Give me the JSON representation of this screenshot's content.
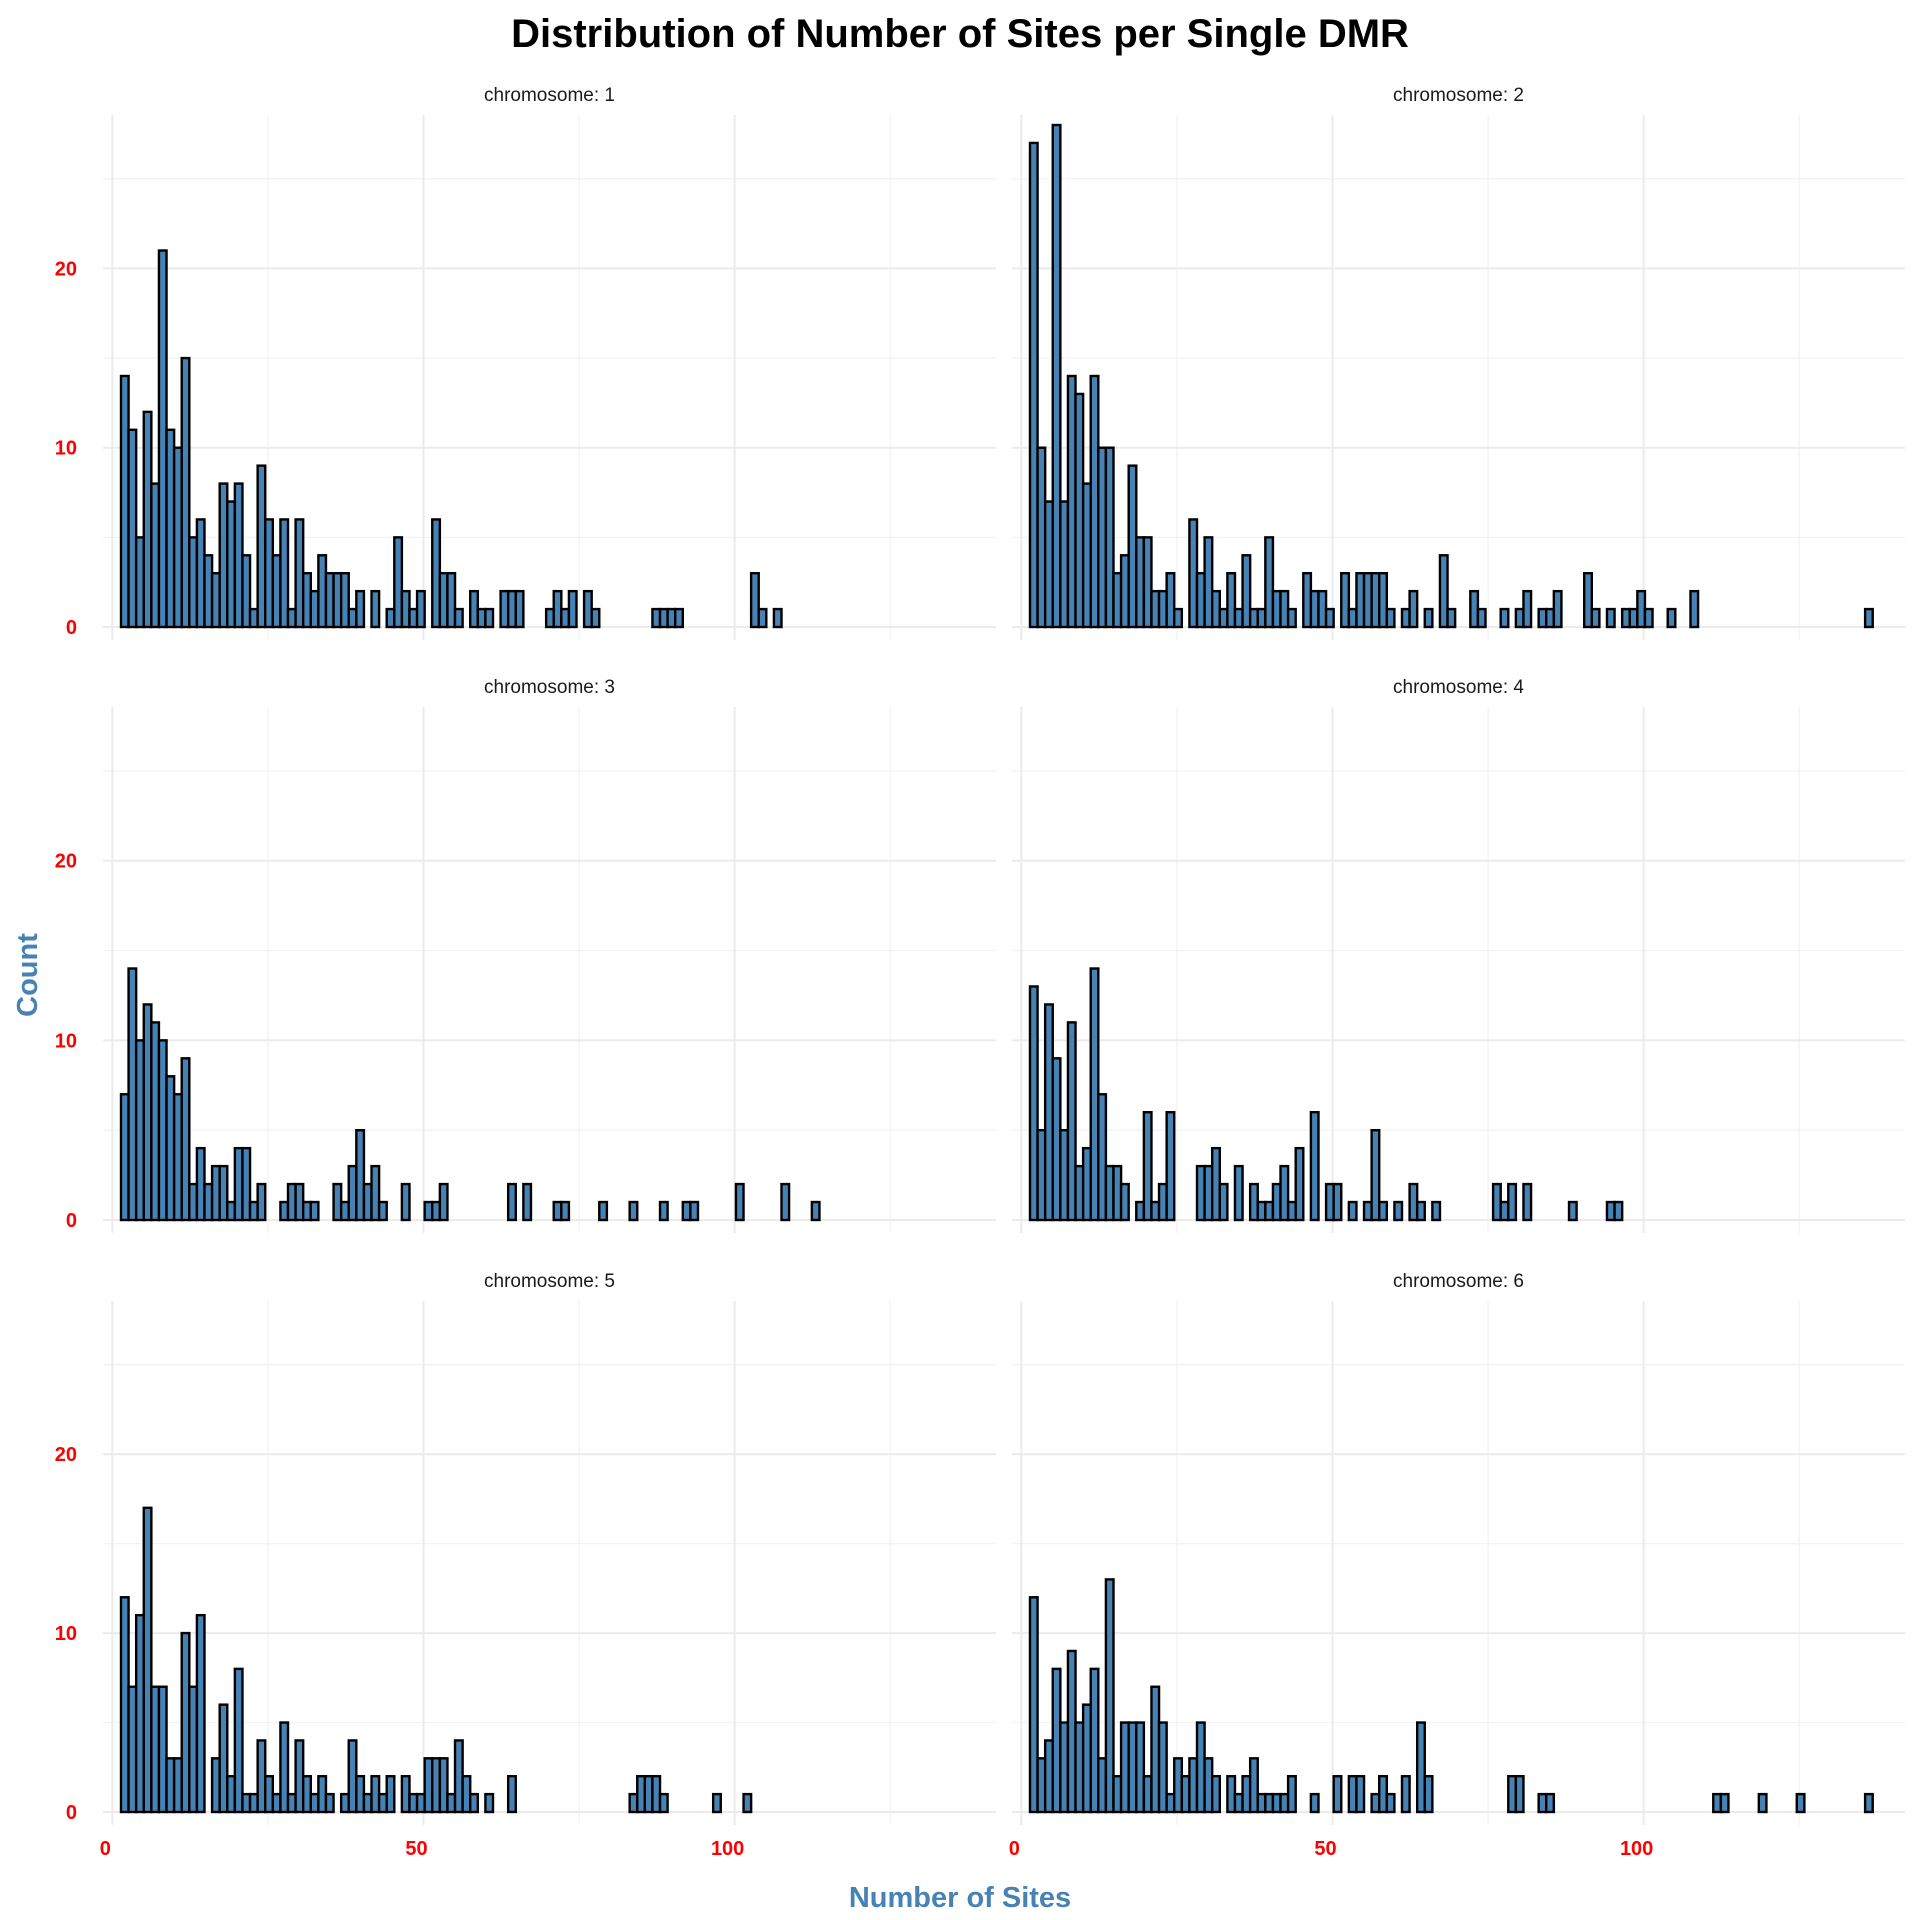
{
  "chart_data": {
    "type": "bar",
    "title": "Distribution of Number of Sites per Single DMR",
    "xlabel": "Number of Sites",
    "ylabel": "Count",
    "xlim": [
      -1.5,
      142
    ],
    "ylim": [
      0,
      28
    ],
    "x_ticks": [
      0,
      50,
      100
    ],
    "y_ticks": [
      0,
      10,
      20
    ],
    "bin_width": 1.22,
    "bin_start": 1.39,
    "bar_fill": "#4682b4",
    "bar_outline": "#000000",
    "axis_title_color": "#4682b4",
    "tick_label_color": "#ff0000",
    "grid": true,
    "facets": [
      {
        "strip": "chromosome: 1",
        "values": [
          14,
          11,
          5,
          12,
          8,
          21,
          11,
          10,
          15,
          5,
          6,
          4,
          3,
          8,
          7,
          8,
          4,
          1,
          9,
          6,
          4,
          6,
          1,
          6,
          3,
          2,
          4,
          3,
          3,
          3,
          1,
          2,
          0,
          2,
          0,
          1,
          5,
          2,
          1,
          2,
          0,
          6,
          3,
          3,
          1,
          0,
          2,
          1,
          1,
          0,
          2,
          2,
          2,
          0,
          0,
          0,
          1,
          2,
          1,
          2,
          0,
          2,
          1,
          0,
          0,
          0,
          0,
          0,
          0,
          0,
          1,
          1,
          1,
          1,
          0,
          0,
          0,
          0,
          0,
          0,
          0,
          0,
          0,
          3,
          1,
          0,
          1,
          0,
          0,
          0,
          0,
          0,
          0,
          0,
          0,
          0,
          0,
          0,
          0,
          0,
          0,
          0,
          0,
          0,
          0,
          0,
          0,
          0,
          0,
          0,
          0
        ]
      },
      {
        "strip": "chromosome: 2",
        "values": [
          27,
          10,
          7,
          28,
          7,
          14,
          13,
          8,
          14,
          10,
          10,
          3,
          4,
          9,
          5,
          5,
          2,
          2,
          3,
          1,
          0,
          6,
          3,
          5,
          2,
          1,
          3,
          1,
          4,
          1,
          1,
          5,
          2,
          2,
          1,
          0,
          3,
          2,
          2,
          1,
          0,
          3,
          1,
          3,
          3,
          3,
          3,
          1,
          0,
          1,
          2,
          0,
          1,
          0,
          4,
          1,
          0,
          0,
          2,
          1,
          0,
          0,
          1,
          0,
          1,
          2,
          0,
          1,
          1,
          2,
          0,
          0,
          0,
          3,
          1,
          0,
          1,
          0,
          1,
          1,
          2,
          1,
          0,
          0,
          1,
          0,
          0,
          2,
          0,
          0,
          0,
          0,
          0,
          0,
          0,
          0,
          0,
          0,
          0,
          0,
          0,
          0,
          0,
          0,
          0,
          0,
          0,
          0,
          0,
          0,
          1
        ]
      },
      {
        "strip": "chromosome: 3",
        "values": [
          7,
          14,
          10,
          12,
          11,
          10,
          8,
          7,
          9,
          2,
          4,
          2,
          3,
          3,
          1,
          4,
          4,
          1,
          2,
          0,
          0,
          1,
          2,
          2,
          1,
          1,
          0,
          0,
          2,
          1,
          3,
          5,
          2,
          3,
          1,
          0,
          0,
          2,
          0,
          0,
          1,
          1,
          2,
          0,
          0,
          0,
          0,
          0,
          0,
          0,
          0,
          2,
          0,
          2,
          0,
          0,
          0,
          1,
          1,
          0,
          0,
          0,
          0,
          1,
          0,
          0,
          0,
          1,
          0,
          0,
          0,
          1,
          0,
          0,
          1,
          1,
          0,
          0,
          0,
          0,
          0,
          2,
          0,
          0,
          0,
          0,
          0,
          2,
          0,
          0,
          0,
          1,
          0,
          0,
          0,
          0,
          0,
          0,
          0,
          0,
          0,
          0,
          0,
          0,
          0,
          0,
          0,
          0,
          0,
          0,
          0
        ]
      },
      {
        "strip": "chromosome: 4",
        "values": [
          13,
          5,
          12,
          9,
          5,
          11,
          3,
          4,
          14,
          7,
          3,
          3,
          2,
          0,
          1,
          6,
          1,
          2,
          6,
          0,
          0,
          0,
          3,
          3,
          4,
          2,
          0,
          3,
          0,
          2,
          1,
          1,
          2,
          3,
          1,
          4,
          0,
          6,
          0,
          2,
          2,
          0,
          1,
          0,
          1,
          5,
          1,
          0,
          1,
          0,
          2,
          1,
          0,
          1,
          0,
          0,
          0,
          0,
          0,
          0,
          0,
          2,
          1,
          2,
          0,
          2,
          0,
          0,
          0,
          0,
          0,
          1,
          0,
          0,
          0,
          0,
          1,
          1,
          0,
          0,
          0,
          0,
          0,
          0,
          0,
          0,
          0,
          0,
          0,
          0,
          0,
          0,
          0,
          0,
          0,
          0,
          0,
          0,
          0,
          0,
          0,
          0,
          0,
          0,
          0,
          0,
          0,
          0,
          0,
          0,
          0
        ]
      },
      {
        "strip": "chromosome: 5",
        "values": [
          12,
          7,
          11,
          17,
          7,
          7,
          3,
          3,
          10,
          7,
          11,
          0,
          3,
          6,
          2,
          8,
          1,
          1,
          4,
          2,
          1,
          5,
          1,
          4,
          2,
          1,
          2,
          1,
          0,
          1,
          4,
          2,
          1,
          2,
          1,
          2,
          0,
          2,
          1,
          1,
          3,
          3,
          3,
          1,
          4,
          2,
          1,
          0,
          1,
          0,
          0,
          2,
          0,
          0,
          0,
          0,
          0,
          0,
          0,
          0,
          0,
          0,
          0,
          0,
          0,
          0,
          0,
          1,
          2,
          2,
          2,
          1,
          0,
          0,
          0,
          0,
          0,
          0,
          1,
          0,
          0,
          0,
          1,
          0,
          0,
          0,
          0,
          0,
          0,
          0,
          0,
          0,
          0,
          0,
          0,
          0,
          0,
          0,
          0,
          0,
          0,
          0,
          0,
          0,
          0,
          0,
          0,
          0,
          0,
          0,
          0
        ]
      },
      {
        "strip": "chromosome: 6",
        "values": [
          12,
          3,
          4,
          8,
          5,
          9,
          5,
          6,
          8,
          3,
          13,
          2,
          5,
          5,
          5,
          2,
          7,
          5,
          1,
          3,
          2,
          3,
          5,
          3,
          2,
          0,
          2,
          1,
          2,
          3,
          1,
          1,
          1,
          1,
          2,
          0,
          0,
          1,
          0,
          0,
          2,
          0,
          2,
          2,
          0,
          1,
          2,
          1,
          0,
          2,
          0,
          5,
          2,
          0,
          0,
          0,
          0,
          0,
          0,
          0,
          0,
          0,
          0,
          2,
          2,
          0,
          0,
          1,
          1,
          0,
          0,
          0,
          0,
          0,
          0,
          0,
          0,
          0,
          0,
          0,
          0,
          0,
          0,
          0,
          0,
          0,
          0,
          0,
          0,
          0,
          1,
          1,
          0,
          0,
          0,
          0,
          1,
          0,
          0,
          0,
          0,
          1,
          0,
          0,
          0,
          0,
          0,
          0,
          0,
          0,
          1
        ]
      }
    ]
  }
}
